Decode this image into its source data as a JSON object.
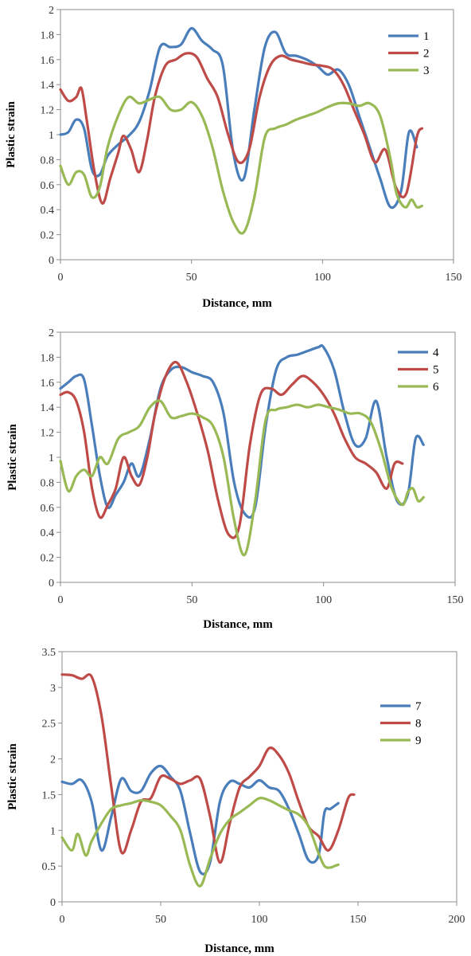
{
  "colors": {
    "s1": "#4a7ebb",
    "s2": "#be4b48",
    "s3": "#98b954"
  },
  "chart_data": [
    {
      "type": "line",
      "xlabel": "Distance, mm",
      "ylabel": "Plastic strain",
      "xlim": [
        0,
        150
      ],
      "ylim": [
        0,
        2
      ],
      "xticks": [
        "0",
        "50",
        "100",
        "150"
      ],
      "yticks": [
        "0",
        "0.2",
        "0.4",
        "0.6",
        "0.8",
        "1",
        "1.2",
        "1.4",
        "1.6",
        "1.8",
        "2"
      ],
      "grid": false,
      "legend_position": "top-right",
      "series": [
        {
          "name": "1",
          "x": [
            0,
            3,
            6,
            9,
            12,
            15,
            18,
            22,
            26,
            30,
            34,
            38,
            42,
            46,
            50,
            54,
            58,
            62,
            66,
            70,
            74,
            78,
            82,
            86,
            90,
            94,
            98,
            102,
            106,
            110,
            114,
            118,
            122,
            126,
            130,
            133,
            136
          ],
          "y": [
            1.0,
            1.02,
            1.12,
            1.05,
            0.72,
            0.68,
            0.83,
            0.92,
            0.99,
            1.1,
            1.35,
            1.7,
            1.7,
            1.72,
            1.85,
            1.75,
            1.68,
            1.55,
            0.85,
            0.65,
            1.2,
            1.7,
            1.82,
            1.65,
            1.63,
            1.6,
            1.55,
            1.48,
            1.52,
            1.4,
            1.15,
            0.9,
            0.65,
            0.42,
            0.55,
            1.02,
            0.9
          ]
        },
        {
          "name": "2",
          "x": [
            0,
            3,
            6,
            8,
            10,
            13,
            16,
            19,
            22,
            24,
            27,
            30,
            33,
            36,
            40,
            44,
            48,
            52,
            56,
            60,
            64,
            68,
            72,
            76,
            80,
            84,
            88,
            92,
            96,
            100,
            104,
            108,
            112,
            116,
            120,
            124,
            128,
            132,
            136,
            138
          ],
          "y": [
            1.36,
            1.27,
            1.3,
            1.37,
            1.12,
            0.7,
            0.45,
            0.65,
            0.85,
            0.99,
            0.88,
            0.7,
            0.95,
            1.3,
            1.55,
            1.6,
            1.65,
            1.62,
            1.45,
            1.3,
            1.0,
            0.78,
            0.88,
            1.3,
            1.55,
            1.63,
            1.6,
            1.58,
            1.56,
            1.55,
            1.52,
            1.4,
            1.2,
            1.0,
            0.78,
            0.88,
            0.58,
            0.53,
            0.98,
            1.05
          ]
        },
        {
          "name": "3",
          "x": [
            0,
            3,
            6,
            9,
            12,
            15,
            18,
            22,
            26,
            30,
            34,
            38,
            42,
            46,
            50,
            54,
            58,
            62,
            66,
            70,
            74,
            78,
            82,
            86,
            90,
            94,
            98,
            102,
            106,
            110,
            114,
            118,
            122,
            126,
            128,
            130,
            132,
            134,
            136,
            138
          ],
          "y": [
            0.75,
            0.6,
            0.7,
            0.68,
            0.5,
            0.58,
            0.9,
            1.15,
            1.3,
            1.25,
            1.28,
            1.3,
            1.2,
            1.2,
            1.26,
            1.15,
            0.9,
            0.55,
            0.3,
            0.22,
            0.5,
            0.98,
            1.05,
            1.08,
            1.12,
            1.15,
            1.18,
            1.22,
            1.25,
            1.25,
            1.23,
            1.25,
            1.15,
            0.8,
            0.55,
            0.45,
            0.42,
            0.48,
            0.42,
            0.43
          ]
        }
      ]
    },
    {
      "type": "line",
      "xlabel": "Distance, mm",
      "ylabel": "Plastic strain",
      "xlim": [
        0,
        150
      ],
      "ylim": [
        0,
        2
      ],
      "xticks": [
        "0",
        "50",
        "100",
        "150"
      ],
      "yticks": [
        "0",
        "0.2",
        "0.4",
        "0.6",
        "0.8",
        "1",
        "1.2",
        "1.4",
        "1.6",
        "1.8",
        "2"
      ],
      "grid": false,
      "legend_position": "top-right",
      "series": [
        {
          "name": "4",
          "x": [
            0,
            3,
            6,
            9,
            12,
            15,
            18,
            21,
            24,
            27,
            30,
            34,
            38,
            42,
            46,
            50,
            54,
            58,
            62,
            66,
            70,
            74,
            78,
            82,
            86,
            90,
            94,
            98,
            100,
            104,
            108,
            112,
            116,
            120,
            124,
            128,
            132,
            135,
            138
          ],
          "y": [
            1.55,
            1.6,
            1.65,
            1.62,
            1.25,
            0.85,
            0.6,
            0.7,
            0.8,
            0.95,
            0.85,
            1.15,
            1.55,
            1.7,
            1.72,
            1.68,
            1.65,
            1.6,
            1.35,
            0.8,
            0.55,
            0.6,
            1.25,
            1.7,
            1.8,
            1.82,
            1.85,
            1.88,
            1.88,
            1.7,
            1.35,
            1.1,
            1.15,
            1.45,
            1.0,
            0.65,
            0.7,
            1.15,
            1.1
          ]
        },
        {
          "name": "5",
          "x": [
            0,
            3,
            6,
            9,
            12,
            15,
            18,
            21,
            24,
            27,
            30,
            33,
            36,
            40,
            44,
            48,
            52,
            56,
            60,
            64,
            68,
            72,
            76,
            80,
            84,
            88,
            92,
            96,
            100,
            104,
            108,
            112,
            116,
            120,
            124,
            127,
            130
          ],
          "y": [
            1.5,
            1.52,
            1.45,
            1.2,
            0.75,
            0.52,
            0.62,
            0.75,
            1.0,
            0.85,
            0.78,
            1.0,
            1.35,
            1.65,
            1.76,
            1.6,
            1.35,
            1.05,
            0.65,
            0.38,
            0.45,
            1.1,
            1.5,
            1.55,
            1.5,
            1.58,
            1.65,
            1.6,
            1.5,
            1.35,
            1.15,
            1.0,
            0.95,
            0.88,
            0.75,
            0.95,
            0.95
          ]
        },
        {
          "name": "6",
          "x": [
            0,
            3,
            6,
            9,
            12,
            15,
            18,
            22,
            26,
            30,
            34,
            38,
            42,
            46,
            50,
            54,
            58,
            62,
            66,
            70,
            74,
            78,
            82,
            86,
            90,
            94,
            98,
            102,
            106,
            110,
            114,
            118,
            122,
            126,
            130,
            132,
            134,
            136,
            138
          ],
          "y": [
            0.97,
            0.73,
            0.85,
            0.9,
            0.85,
            1.0,
            0.95,
            1.15,
            1.2,
            1.25,
            1.4,
            1.45,
            1.32,
            1.33,
            1.35,
            1.32,
            1.25,
            1.0,
            0.5,
            0.22,
            0.65,
            1.3,
            1.38,
            1.4,
            1.42,
            1.4,
            1.42,
            1.4,
            1.38,
            1.35,
            1.35,
            1.28,
            1.05,
            0.75,
            0.62,
            0.72,
            0.75,
            0.65,
            0.68
          ]
        }
      ]
    },
    {
      "type": "line",
      "xlabel": "Distance, mm",
      "ylabel": "Plastic strain",
      "xlim": [
        0,
        200
      ],
      "ylim": [
        0,
        3.5
      ],
      "xticks": [
        "0",
        "50",
        "100",
        "150",
        "200"
      ],
      "yticks": [
        "0",
        "0.5",
        "1",
        "1.5",
        "2",
        "2.5",
        "3",
        "3.5"
      ],
      "grid": false,
      "legend_position": "right",
      "series": [
        {
          "name": "7",
          "x": [
            0,
            5,
            10,
            15,
            20,
            25,
            30,
            35,
            40,
            45,
            50,
            55,
            60,
            65,
            70,
            75,
            80,
            85,
            90,
            95,
            100,
            105,
            110,
            115,
            120,
            125,
            130,
            133,
            136,
            140
          ],
          "y": [
            1.68,
            1.65,
            1.7,
            1.4,
            0.72,
            1.2,
            1.72,
            1.55,
            1.55,
            1.8,
            1.9,
            1.75,
            1.55,
            0.95,
            0.42,
            0.55,
            1.4,
            1.68,
            1.65,
            1.6,
            1.7,
            1.6,
            1.55,
            1.3,
            0.95,
            0.58,
            0.65,
            1.25,
            1.3,
            1.38
          ]
        },
        {
          "name": "8",
          "x": [
            0,
            5,
            10,
            15,
            20,
            25,
            30,
            35,
            40,
            45,
            50,
            55,
            60,
            65,
            70,
            75,
            80,
            85,
            90,
            95,
            100,
            105,
            110,
            115,
            120,
            125,
            130,
            135,
            140,
            145,
            148
          ],
          "y": [
            3.18,
            3.17,
            3.12,
            3.15,
            2.6,
            1.6,
            0.7,
            1.0,
            1.4,
            1.45,
            1.75,
            1.72,
            1.65,
            1.7,
            1.72,
            1.2,
            0.55,
            1.1,
            1.6,
            1.75,
            1.9,
            2.15,
            2.05,
            1.8,
            1.4,
            1.05,
            0.92,
            0.72,
            1.0,
            1.45,
            1.5
          ]
        },
        {
          "name": "9",
          "x": [
            0,
            5,
            8,
            12,
            15,
            20,
            25,
            30,
            35,
            40,
            45,
            50,
            55,
            60,
            65,
            70,
            75,
            80,
            85,
            90,
            95,
            100,
            105,
            110,
            115,
            120,
            125,
            130,
            133,
            136,
            138,
            140
          ],
          "y": [
            0.9,
            0.72,
            0.95,
            0.65,
            0.85,
            1.1,
            1.3,
            1.35,
            1.38,
            1.42,
            1.4,
            1.35,
            1.2,
            1.0,
            0.5,
            0.22,
            0.6,
            0.95,
            1.15,
            1.25,
            1.35,
            1.45,
            1.42,
            1.35,
            1.28,
            1.22,
            1.05,
            0.68,
            0.5,
            0.48,
            0.5,
            0.52
          ]
        }
      ]
    }
  ]
}
